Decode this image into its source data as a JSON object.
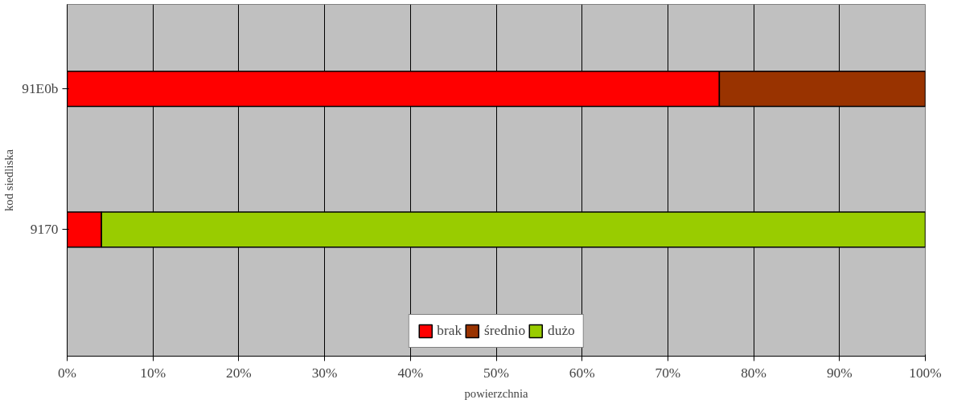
{
  "chart_data": {
    "type": "bar",
    "orientation": "horizontal",
    "stacked": true,
    "ylabel": "kod siedliska",
    "xlabel": "powierzchnia",
    "categories": [
      "91E0b",
      "9170"
    ],
    "series": [
      {
        "name": "brak",
        "color": "#ff0000",
        "values": [
          76,
          4
        ]
      },
      {
        "name": "średnio",
        "color": "#993300",
        "values": [
          24,
          0
        ]
      },
      {
        "name": "dużo",
        "color": "#99cc00",
        "values": [
          0,
          96
        ]
      }
    ],
    "xlim": [
      0,
      100
    ],
    "xticks": [
      {
        "value": 0,
        "label": "0%"
      },
      {
        "value": 10,
        "label": "10%"
      },
      {
        "value": 20,
        "label": "20%"
      },
      {
        "value": 30,
        "label": "30%"
      },
      {
        "value": 40,
        "label": "40%"
      },
      {
        "value": 50,
        "label": "50%"
      },
      {
        "value": 60,
        "label": "60%"
      },
      {
        "value": 70,
        "label": "70%"
      },
      {
        "value": 80,
        "label": "80%"
      },
      {
        "value": 90,
        "label": "90%"
      },
      {
        "value": 100,
        "label": "100%"
      }
    ],
    "grid": "x",
    "legend": "bottom"
  }
}
